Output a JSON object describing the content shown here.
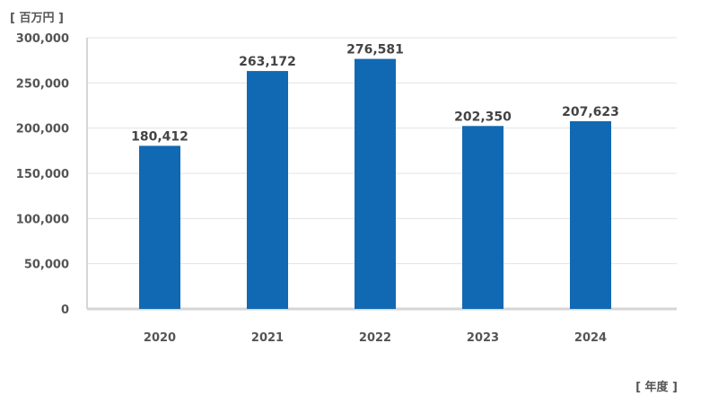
{
  "chart_data": {
    "type": "bar",
    "y_unit_label": "[ 百万円 ]",
    "x_unit_label": "[ 年度 ]",
    "categories": [
      "2020",
      "2021",
      "2022",
      "2023",
      "2024"
    ],
    "values": [
      180412,
      263172,
      276581,
      202350,
      207623
    ],
    "value_labels": [
      "180,412",
      "263,172",
      "276,581",
      "202,350",
      "207,623"
    ],
    "yticks": [
      "0",
      "50,000",
      "100,000",
      "150,000",
      "200,000",
      "250,000",
      "300,000"
    ],
    "ytick_values": [
      0,
      50000,
      100000,
      150000,
      200000,
      250000,
      300000
    ],
    "ylim": [
      0,
      300000
    ],
    "grid": true,
    "bar_color": "#1169b3",
    "grid_color": "#e3e3e3",
    "axis_color": "#d6d6d6"
  }
}
